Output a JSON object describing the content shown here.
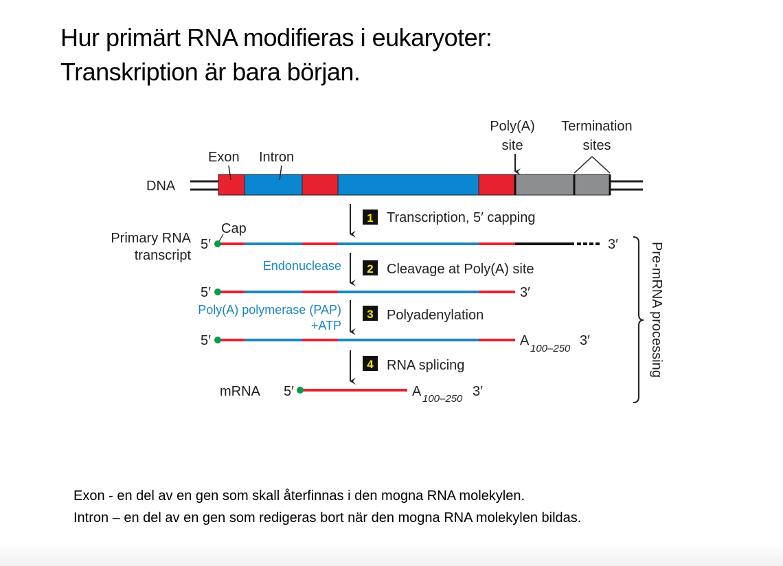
{
  "title": {
    "line1": "Hur primärt RNA modifieras i eukaryoter:",
    "line2": "Transkription är bara början."
  },
  "diagram": {
    "dna_label": "DNA",
    "exon_label": "Exon",
    "intron_label": "Intron",
    "polya_label_1": "Poly(A)",
    "polya_label_2": "site",
    "termination_label_1": "Termination",
    "termination_label_2": "sites",
    "primary_label_1": "Primary RNA",
    "primary_label_2": "transcript",
    "cap_label": "Cap",
    "five_prime": "5′",
    "three_prime": "3′",
    "poly_a": "A",
    "poly_a_sub": "100–250",
    "mrna_label": "mRNA",
    "steps": [
      {
        "num": "1",
        "label": "Transcription, 5′ capping"
      },
      {
        "num": "2",
        "label": "Cleavage at Poly(A) site",
        "enzyme": "Endonuclease"
      },
      {
        "num": "3",
        "label": "Polyadenylation",
        "enzyme": "Poly(A) polymerase (PAP)",
        "enzyme2": "+ATP"
      },
      {
        "num": "4",
        "label": "RNA splicing"
      }
    ],
    "bracket_label": "Pre-mRNA processing",
    "colors": {
      "exon": "#e8212f",
      "intron": "#0a87d0",
      "termination": "#8d8e90",
      "cap": "#0a9a4a",
      "enzyme_text": "#1a86c2"
    }
  },
  "definitions": {
    "exon": "Exon -  en del av en gen som skall återfinnas i den mogna RNA molekylen.",
    "intron": "Intron – en del av en gen som redigeras bort när den mogna RNA molekylen bildas."
  }
}
